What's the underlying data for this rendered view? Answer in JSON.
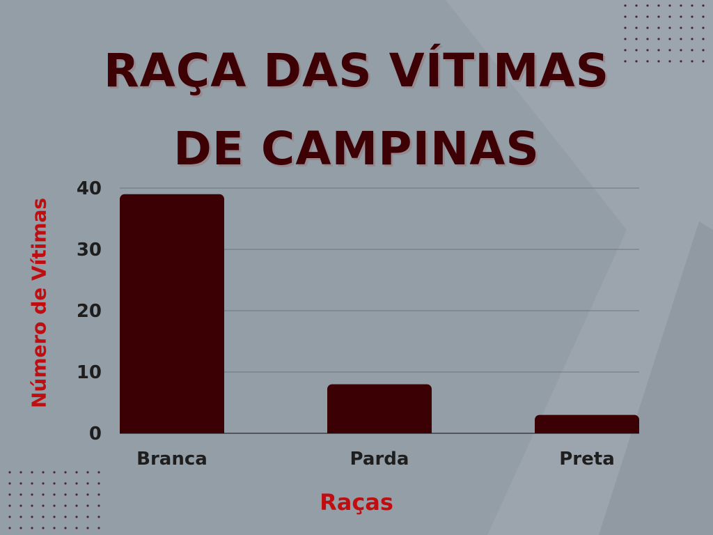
{
  "chart_data": {
    "type": "bar",
    "title_lines": [
      "RAÇA DAS VÍTIMAS",
      "DE CAMPINAS"
    ],
    "xlabel": "Raças",
    "ylabel": "Número de Vítimas",
    "categories": [
      "Branca",
      "Parda",
      "Preta"
    ],
    "values": [
      39,
      8,
      3
    ],
    "ylim": [
      0,
      40
    ],
    "yticks": [
      "0",
      "10",
      "20",
      "30",
      "40"
    ],
    "grid": true,
    "legend": "none"
  },
  "colors": {
    "background": "#949ea6",
    "bar": "#3b0003",
    "title": "#3d0005",
    "axis_label": "#c00d10",
    "tick_text": "#1e1e1e",
    "grid": "#6e767c"
  }
}
